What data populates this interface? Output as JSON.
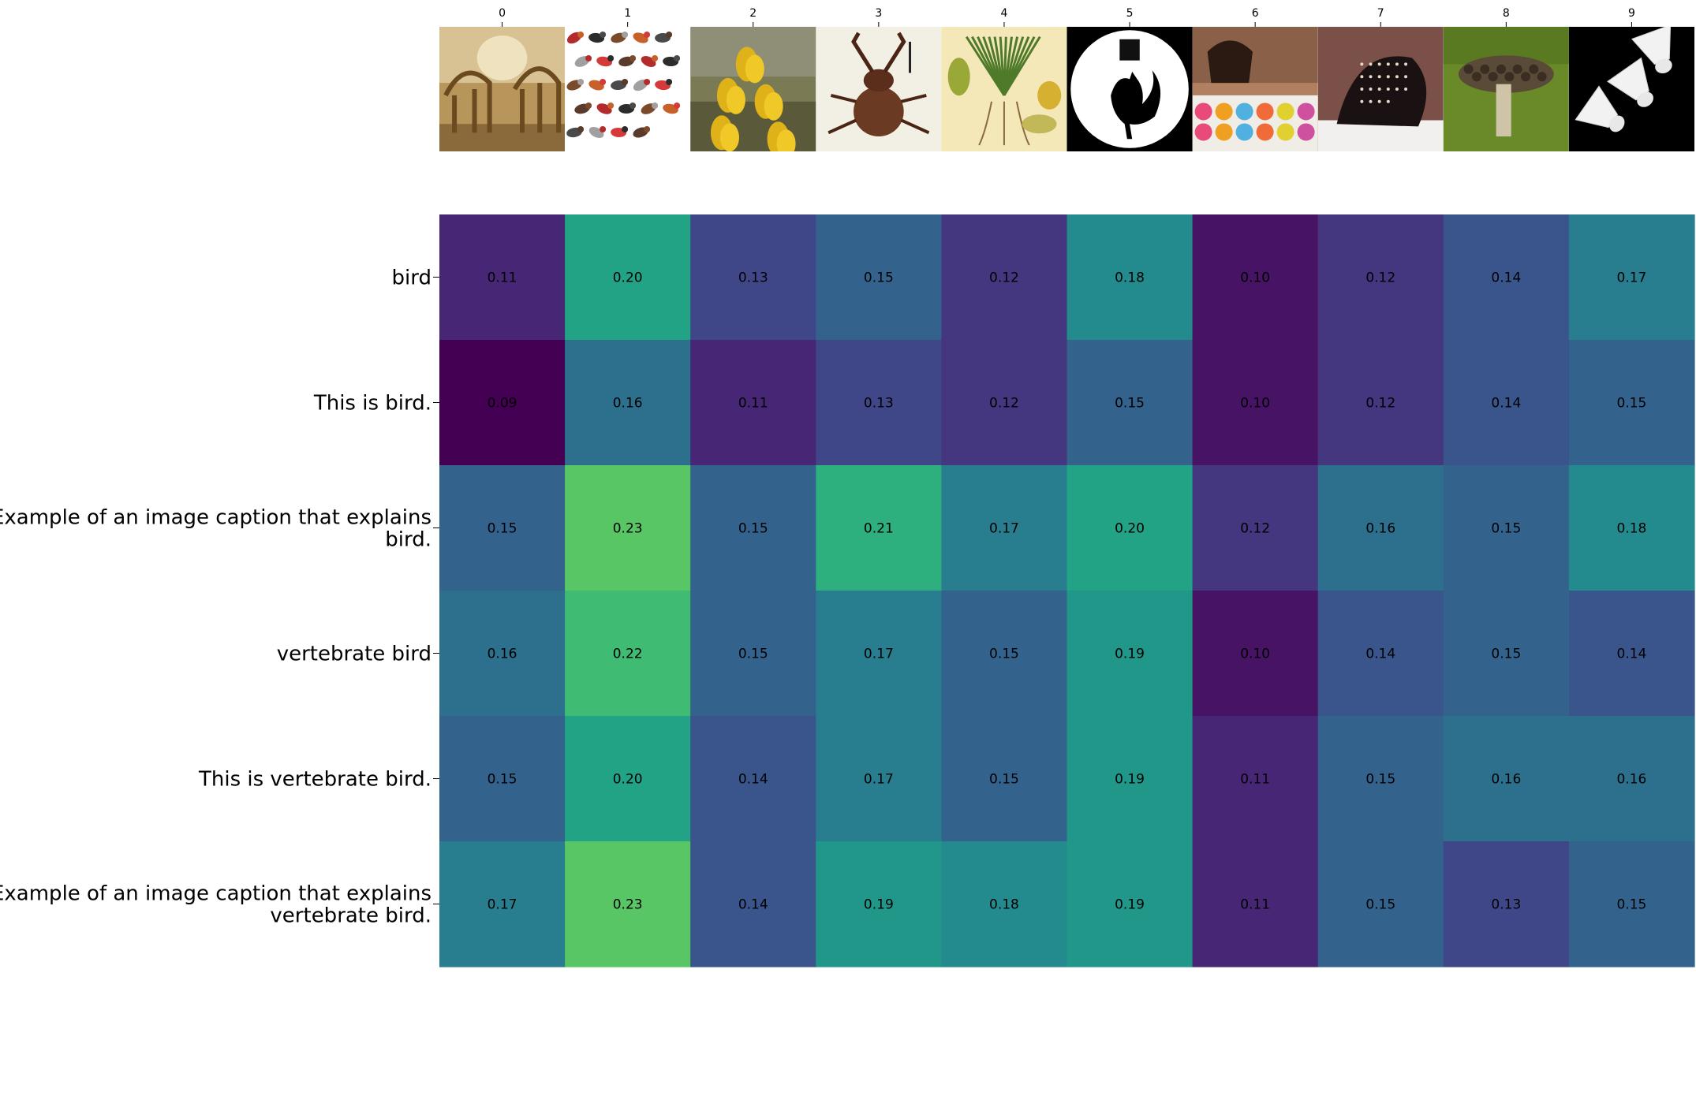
{
  "chart_data": {
    "type": "heatmap",
    "colormap": "viridis",
    "x_tick_labels": [
      "0",
      "1",
      "2",
      "3",
      "4",
      "5",
      "6",
      "7",
      "8",
      "9"
    ],
    "thumbnail_icons": [
      "museum-skeletons-icon",
      "bird-poster-icon",
      "yellow-orchid-icon",
      "beetle-icon",
      "botanical-plant-illustration-icon",
      "rooster-silhouette-icon",
      "girl-with-flowers-icon",
      "dark-mushroom-cap-icon",
      "mushroom-on-moss-icon",
      "shuttlecocks-icon"
    ],
    "row_labels": [
      [
        "bird"
      ],
      [
        "This is bird."
      ],
      [
        "Example of an image caption that explains",
        "bird."
      ],
      [
        "vertebrate bird"
      ],
      [
        "This is vertebrate bird."
      ],
      [
        "Example of an image caption that explains",
        "vertebrate bird."
      ]
    ],
    "values": [
      [
        0.11,
        0.2,
        0.13,
        0.15,
        0.12,
        0.18,
        0.1,
        0.12,
        0.14,
        0.17
      ],
      [
        0.09,
        0.16,
        0.11,
        0.13,
        0.12,
        0.15,
        0.1,
        0.12,
        0.14,
        0.15
      ],
      [
        0.15,
        0.23,
        0.15,
        0.21,
        0.17,
        0.2,
        0.12,
        0.16,
        0.15,
        0.18
      ],
      [
        0.16,
        0.22,
        0.15,
        0.17,
        0.15,
        0.19,
        0.1,
        0.14,
        0.15,
        0.14
      ],
      [
        0.15,
        0.2,
        0.14,
        0.17,
        0.15,
        0.19,
        0.11,
        0.15,
        0.16,
        0.16
      ],
      [
        0.17,
        0.23,
        0.14,
        0.19,
        0.18,
        0.19,
        0.11,
        0.15,
        0.13,
        0.15
      ]
    ],
    "value_format": "2 decimals",
    "grid": false
  }
}
